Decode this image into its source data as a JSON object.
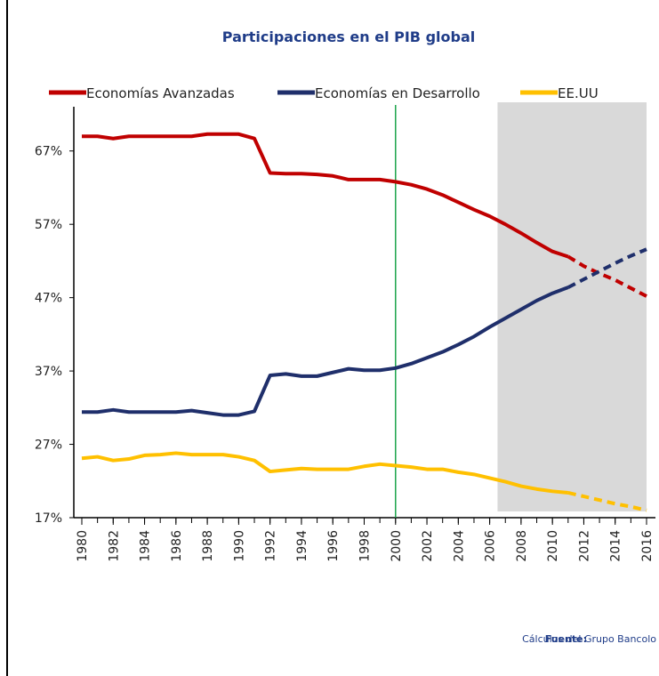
{
  "chart_data": {
    "type": "line",
    "title": "Participaciones en el PIB global",
    "x": [
      1980,
      1981,
      1982,
      1983,
      1984,
      1985,
      1986,
      1987,
      1988,
      1989,
      1990,
      1991,
      1992,
      1993,
      1994,
      1995,
      1996,
      1997,
      1998,
      1999,
      2000,
      2001,
      2002,
      2003,
      2004,
      2005,
      2006,
      2007,
      2008,
      2009,
      2010,
      2011,
      2012,
      2013,
      2014,
      2015,
      2016
    ],
    "series": [
      {
        "name": "Economías Avanzadas",
        "color": "#c00000",
        "values": [
          69,
          69,
          68.7,
          69,
          69,
          69,
          69,
          69,
          69.3,
          69.3,
          69.3,
          68.7,
          64,
          63.9,
          63.9,
          63.8,
          63.6,
          63.1,
          63.1,
          63.1,
          62.8,
          62.4,
          61.8,
          61,
          60,
          59,
          58.1,
          57,
          55.8,
          54.5,
          53.3,
          52.6,
          51.3,
          50.3,
          49.4,
          48.3,
          47.2
        ]
      },
      {
        "name": "Economías en Desarrollo",
        "color": "#1f2f6b",
        "values": [
          31.4,
          31.4,
          31.7,
          31.4,
          31.4,
          31.4,
          31.4,
          31.6,
          31.3,
          31,
          31,
          31.5,
          36.4,
          36.6,
          36.3,
          36.3,
          36.8,
          37.3,
          37.1,
          37.1,
          37.4,
          38,
          38.8,
          39.6,
          40.6,
          41.7,
          43,
          44.2,
          45.4,
          46.6,
          47.6,
          48.4,
          49.5,
          50.6,
          51.7,
          52.7,
          53.6
        ]
      },
      {
        "name": "EE.UU",
        "color": "#ffc000",
        "values": [
          25.1,
          25.3,
          24.8,
          25,
          25.5,
          25.6,
          25.8,
          25.6,
          25.6,
          25.6,
          25.3,
          24.8,
          23.3,
          23.5,
          23.7,
          23.6,
          23.6,
          23.6,
          24,
          24.3,
          24.1,
          23.9,
          23.6,
          23.6,
          23.2,
          22.9,
          22.4,
          21.9,
          21.3,
          20.9,
          20.6,
          20.4,
          19.9,
          19.4,
          18.9,
          18.5,
          18
        ]
      }
    ],
    "forecast_from": 2011,
    "shaded_range": [
      2006.5,
      2016
    ],
    "vline": 2000,
    "vline_color": "#1aa34a",
    "xlim": [
      1980,
      2016
    ],
    "xticks": [
      1980,
      1982,
      1984,
      1986,
      1988,
      1990,
      1992,
      1994,
      1996,
      1998,
      2000,
      2002,
      2004,
      2006,
      2008,
      2010,
      2012,
      2014,
      2016
    ],
    "ylim": [
      17,
      70
    ],
    "yticks": [
      {
        "value": 17,
        "label": "17%"
      },
      {
        "value": 27,
        "label": "27%"
      },
      {
        "value": 37,
        "label": "37%"
      },
      {
        "value": 47,
        "label": "47%"
      },
      {
        "value": 57,
        "label": "57%"
      },
      {
        "value": 67,
        "label": "67%"
      }
    ],
    "source_label": "Fuente:",
    "source": "Cálculos del Grupo Bancolo"
  }
}
